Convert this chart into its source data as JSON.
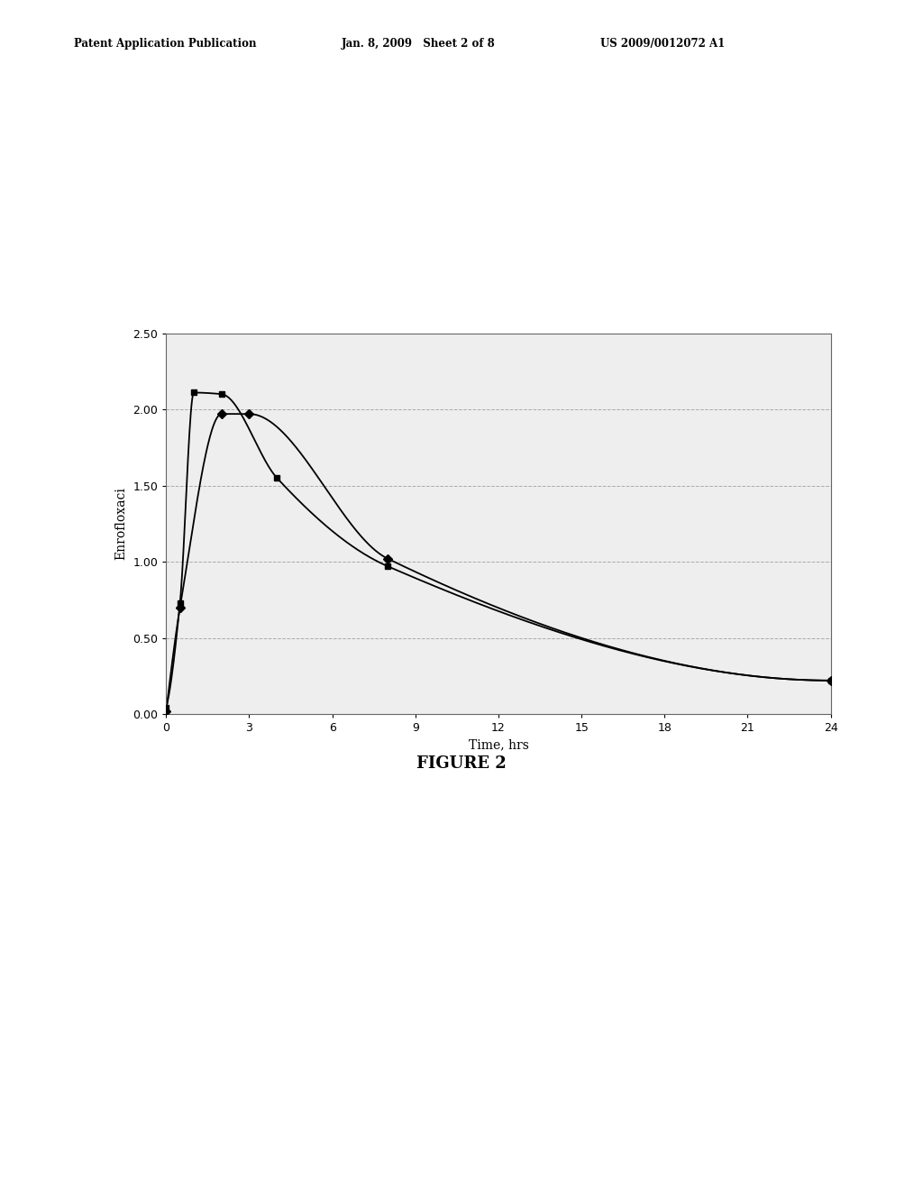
{
  "header_left": "Patent Application Publication",
  "header_center": "Jan. 8, 2009   Sheet 2 of 8",
  "header_right": "US 2009/0012072 A1",
  "figure_label": "FIGURE 2",
  "xlabel": "Time, hrs",
  "ylabel": "Enrofloxaci",
  "xlim": [
    0,
    24
  ],
  "ylim": [
    0.0,
    2.5
  ],
  "xticks": [
    0,
    3,
    6,
    9,
    12,
    15,
    18,
    21,
    24
  ],
  "yticks": [
    0.0,
    0.5,
    1.0,
    1.5,
    2.0,
    2.5
  ],
  "series1_x": [
    0,
    0.5,
    1,
    2,
    4,
    8,
    24
  ],
  "series1_y": [
    0.04,
    0.73,
    2.11,
    2.1,
    1.55,
    0.97,
    0.22
  ],
  "series2_x": [
    0,
    0.5,
    2,
    3,
    8,
    24
  ],
  "series2_y": [
    0.02,
    0.7,
    1.97,
    1.97,
    1.02,
    0.22
  ],
  "line_color": "#000000",
  "marker1": "s",
  "marker2": "D",
  "background_color": "#ffffff",
  "plot_bg_color": "#eeeeee"
}
